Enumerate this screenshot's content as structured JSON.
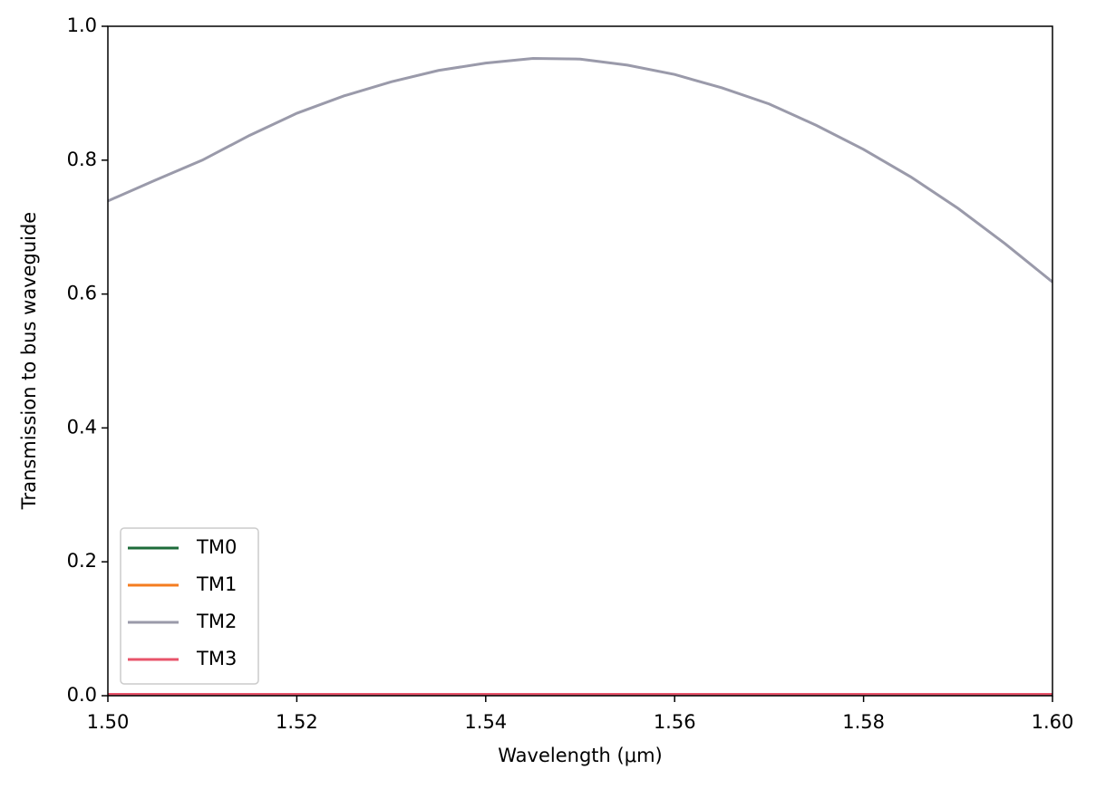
{
  "chart_data": {
    "type": "line",
    "x_label": "Wavelength (μm)",
    "y_label": "Transmission to bus waveguide",
    "x": [
      1.5,
      1.505,
      1.51,
      1.515,
      1.52,
      1.525,
      1.53,
      1.535,
      1.54,
      1.545,
      1.55,
      1.555,
      1.56,
      1.565,
      1.57,
      1.575,
      1.58,
      1.585,
      1.59,
      1.595,
      1.6
    ],
    "series": [
      {
        "name": "TM0",
        "color": "#1d6b3a",
        "values": [
          0,
          0,
          0,
          0,
          0,
          0,
          0,
          0,
          0,
          0,
          0,
          0,
          0,
          0,
          0,
          0,
          0,
          0,
          0,
          0,
          0
        ]
      },
      {
        "name": "TM1",
        "color": "#f47c20",
        "values": [
          0.002,
          0.002,
          0.002,
          0.002,
          0.002,
          0.002,
          0.002,
          0.002,
          0.002,
          0.002,
          0.002,
          0.002,
          0.002,
          0.002,
          0.002,
          0.002,
          0.002,
          0.002,
          0.002,
          0.002,
          0.002
        ]
      },
      {
        "name": "TM2",
        "color": "#9a9aaa",
        "values": [
          0.739,
          0.77,
          0.8,
          0.837,
          0.87,
          0.896,
          0.917,
          0.934,
          0.945,
          0.952,
          0.951,
          0.942,
          0.928,
          0.908,
          0.884,
          0.852,
          0.816,
          0.775,
          0.728,
          0.675,
          0.618
        ]
      },
      {
        "name": "TM3",
        "color": "#e8536a",
        "values": [
          0.002,
          0.002,
          0.002,
          0.002,
          0.002,
          0.002,
          0.002,
          0.002,
          0.002,
          0.002,
          0.002,
          0.002,
          0.002,
          0.002,
          0.002,
          0.002,
          0.002,
          0.002,
          0.002,
          0.002,
          0.002
        ]
      }
    ],
    "xlim": [
      1.5,
      1.6
    ],
    "ylim": [
      0,
      1
    ],
    "xticks": [
      {
        "value": 1.5,
        "label": "1.50"
      },
      {
        "value": 1.52,
        "label": "1.52"
      },
      {
        "value": 1.54,
        "label": "1.54"
      },
      {
        "value": 1.56,
        "label": "1.56"
      },
      {
        "value": 1.58,
        "label": "1.58"
      },
      {
        "value": 1.6,
        "label": "1.60"
      }
    ],
    "yticks": [
      {
        "value": 0,
        "label": "0.0"
      },
      0.2,
      0.4,
      0.6,
      0.8,
      {
        "value": 1,
        "label": "1.0"
      }
    ],
    "grid": false,
    "legend": "lower left"
  }
}
